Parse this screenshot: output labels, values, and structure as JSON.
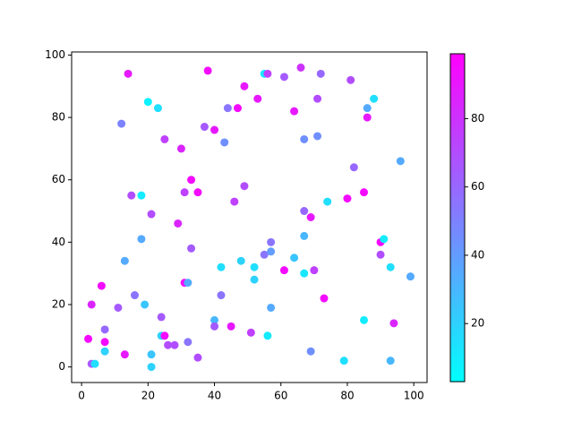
{
  "chart_data": {
    "type": "scatter",
    "x": [
      2,
      3,
      3,
      4,
      6,
      7,
      7,
      7,
      11,
      12,
      13,
      13,
      14,
      15,
      16,
      18,
      18,
      19,
      20,
      21,
      21,
      21,
      23,
      24,
      24,
      25,
      25,
      26,
      28,
      29,
      30,
      31,
      31,
      32,
      32,
      33,
      33,
      35,
      35,
      37,
      38,
      40,
      40,
      40,
      42,
      42,
      43,
      44,
      45,
      46,
      47,
      48,
      49,
      49,
      51,
      52,
      52,
      53,
      55,
      55,
      56,
      56,
      57,
      57,
      57,
      61,
      61,
      64,
      64,
      66,
      67,
      67,
      67,
      67,
      69,
      69,
      70,
      71,
      71,
      72,
      73,
      74,
      79,
      80,
      81,
      82,
      85,
      85,
      86,
      86,
      88,
      90,
      90,
      91,
      93,
      93,
      94,
      96,
      99
    ],
    "y": [
      9,
      20,
      1,
      1,
      26,
      12,
      8,
      5,
      19,
      78,
      34,
      4,
      94,
      55,
      23,
      55,
      41,
      20,
      85,
      49,
      4,
      0,
      83,
      16,
      10,
      10,
      73,
      7,
      7,
      46,
      70,
      56,
      27,
      27,
      8,
      60,
      38,
      56,
      3,
      77,
      95,
      76,
      15,
      13,
      32,
      23,
      72,
      83,
      13,
      53,
      83,
      34,
      90,
      58,
      11,
      32,
      28,
      86,
      94,
      36,
      94,
      10,
      40,
      37,
      19,
      93,
      31,
      82,
      35,
      96,
      73,
      50,
      42,
      30,
      48,
      5,
      31,
      86,
      74,
      94,
      22,
      53,
      2,
      54,
      92,
      64,
      56,
      15,
      83,
      80,
      86,
      40,
      36,
      41,
      32,
      2,
      14,
      66,
      29
    ],
    "c": [
      95,
      85,
      65,
      15,
      95,
      60,
      95,
      20,
      65,
      50,
      35,
      90,
      90,
      70,
      55,
      10,
      35,
      25,
      8,
      70,
      25,
      20,
      15,
      65,
      20,
      95,
      75,
      70,
      70,
      85,
      85,
      75,
      95,
      35,
      55,
      95,
      65,
      95,
      70,
      65,
      95,
      90,
      30,
      65,
      15,
      55,
      45,
      55,
      90,
      75,
      95,
      20,
      90,
      70,
      75,
      15,
      20,
      90,
      12,
      55,
      75,
      10,
      55,
      40,
      35,
      65,
      95,
      90,
      25,
      80,
      45,
      60,
      30,
      12,
      90,
      45,
      75,
      70,
      45,
      60,
      95,
      15,
      15,
      95,
      70,
      60,
      95,
      10,
      35,
      90,
      15,
      95,
      70,
      10,
      15,
      30,
      85,
      35,
      35
    ],
    "colormap": "cool",
    "clim": [
      3,
      99
    ],
    "cticks": [
      20,
      40,
      60,
      80
    ],
    "xlim": [
      -3,
      104
    ],
    "xticks": [
      0,
      20,
      40,
      60,
      80,
      100
    ],
    "ylim": [
      -5,
      101
    ],
    "yticks": [
      0,
      20,
      40,
      60,
      80,
      100
    ]
  }
}
